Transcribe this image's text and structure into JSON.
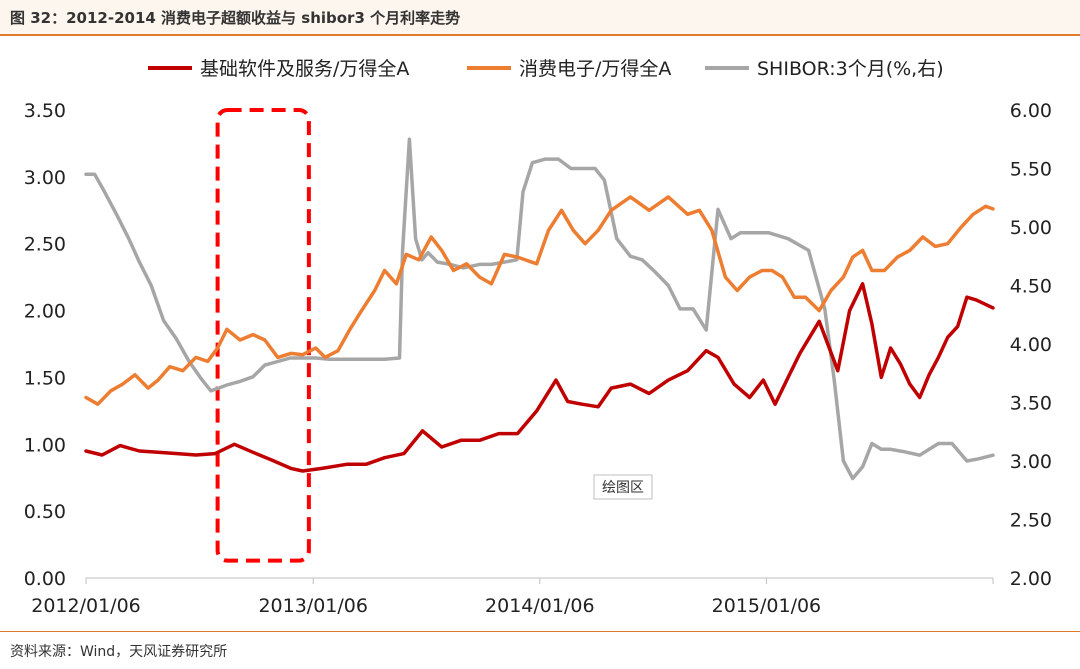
{
  "header": {
    "title": "图 32：2012-2014 消费电子超额收益与 shibor3 个月利率走势"
  },
  "footer": {
    "source": "资料来源：Wind，天风证券研究所"
  },
  "plot_area_label": "绘图区",
  "colors": {
    "series1": "#c00000",
    "series2": "#ed7d31",
    "series3": "#a6a6a6",
    "highlight": "#ff0000",
    "accent": "#e07b2c"
  },
  "chart_data": {
    "type": "line",
    "x_tick_labels": [
      "2012/01/06",
      "2013/01/06",
      "2014/01/06",
      "2015/01/06"
    ],
    "x_range": [
      "2012-01-06",
      "2016-01-06"
    ],
    "left_axis": {
      "ylim": [
        0,
        3.5
      ],
      "ticks": [
        "0.00",
        "0.50",
        "1.00",
        "1.50",
        "2.00",
        "2.50",
        "3.00",
        "3.50"
      ]
    },
    "right_axis": {
      "ylim": [
        2,
        6
      ],
      "ticks": [
        "2.00",
        "2.50",
        "3.00",
        "3.50",
        "4.00",
        "4.50",
        "5.00",
        "5.50",
        "6.00"
      ]
    },
    "legend_position": "top",
    "annotations": [
      {
        "type": "dashed-rectangle",
        "x_range": [
          "2012-08-05",
          "2012-12-30"
        ],
        "y_range": [
          0.13,
          3.5
        ],
        "color": "#ff0000"
      }
    ],
    "series": [
      {
        "name": "基础软件及服务/万得全A",
        "axis": "left",
        "x": [
          "2012-01-06",
          "2012-02-01",
          "2012-03-01",
          "2012-04-01",
          "2012-05-01",
          "2012-06-01",
          "2012-07-01",
          "2012-08-01",
          "2012-09-01",
          "2012-10-01",
          "2012-11-01",
          "2012-12-01",
          "2012-12-20",
          "2013-01-20",
          "2013-03-01",
          "2013-04-01",
          "2013-05-01",
          "2013-06-01",
          "2013-07-01",
          "2013-08-01",
          "2013-09-01",
          "2013-10-01",
          "2013-11-01",
          "2013-12-01",
          "2014-01-01",
          "2014-02-01",
          "2014-02-20",
          "2014-03-15",
          "2014-04-10",
          "2014-05-01",
          "2014-06-01",
          "2014-07-01",
          "2014-08-01",
          "2014-09-01",
          "2014-10-01",
          "2014-10-20",
          "2014-11-15",
          "2014-12-10",
          "2015-01-01",
          "2015-01-20",
          "2015-02-10",
          "2015-03-01",
          "2015-04-01",
          "2015-05-01",
          "2015-05-20",
          "2015-06-10",
          "2015-06-25",
          "2015-07-10",
          "2015-07-25",
          "2015-08-10",
          "2015-08-25",
          "2015-09-10",
          "2015-09-25",
          "2015-10-10",
          "2015-10-25",
          "2015-11-10",
          "2015-11-25",
          "2015-12-10",
          "2016-01-06"
        ],
        "values": [
          0.95,
          0.92,
          0.99,
          0.95,
          0.94,
          0.93,
          0.92,
          0.93,
          1.0,
          0.94,
          0.88,
          0.82,
          0.8,
          0.82,
          0.85,
          0.85,
          0.9,
          0.93,
          1.1,
          0.98,
          1.03,
          1.03,
          1.08,
          1.08,
          1.25,
          1.48,
          1.32,
          1.3,
          1.28,
          1.42,
          1.45,
          1.38,
          1.48,
          1.55,
          1.7,
          1.65,
          1.45,
          1.35,
          1.48,
          1.3,
          1.5,
          1.68,
          1.92,
          1.55,
          2.0,
          2.2,
          1.9,
          1.5,
          1.72,
          1.6,
          1.45,
          1.35,
          1.52,
          1.65,
          1.8,
          1.88,
          2.1,
          2.08,
          2.02
        ]
      },
      {
        "name": "消费电子/万得全A",
        "axis": "left",
        "x": [
          "2012-01-06",
          "2012-01-25",
          "2012-02-15",
          "2012-03-05",
          "2012-03-25",
          "2012-04-15",
          "2012-05-01",
          "2012-05-20",
          "2012-06-10",
          "2012-07-01",
          "2012-07-20",
          "2012-08-05",
          "2012-08-20",
          "2012-09-10",
          "2012-10-01",
          "2012-10-20",
          "2012-11-10",
          "2012-12-01",
          "2012-12-20",
          "2013-01-10",
          "2013-01-25",
          "2013-02-15",
          "2013-03-05",
          "2013-03-25",
          "2013-04-15",
          "2013-05-01",
          "2013-05-20",
          "2013-06-05",
          "2013-06-25",
          "2013-07-15",
          "2013-08-01",
          "2013-08-20",
          "2013-09-10",
          "2013-10-01",
          "2013-10-20",
          "2013-11-10",
          "2013-12-01",
          "2014-01-01",
          "2014-01-20",
          "2014-02-10",
          "2014-03-01",
          "2014-03-20",
          "2014-04-10",
          "2014-05-01",
          "2014-06-01",
          "2014-07-01",
          "2014-08-01",
          "2014-09-01",
          "2014-09-20",
          "2014-10-10",
          "2014-11-01",
          "2014-11-20",
          "2014-12-10",
          "2014-12-30",
          "2015-01-15",
          "2015-02-01",
          "2015-02-20",
          "2015-03-10",
          "2015-04-01",
          "2015-04-20",
          "2015-05-10",
          "2015-05-25",
          "2015-06-10",
          "2015-06-25",
          "2015-07-15",
          "2015-08-05",
          "2015-08-25",
          "2015-09-15",
          "2015-10-05",
          "2015-10-25",
          "2015-11-15",
          "2015-12-05",
          "2015-12-25",
          "2016-01-06"
        ],
        "values": [
          1.35,
          1.3,
          1.4,
          1.45,
          1.52,
          1.42,
          1.48,
          1.58,
          1.55,
          1.65,
          1.62,
          1.72,
          1.86,
          1.78,
          1.82,
          1.78,
          1.65,
          1.68,
          1.67,
          1.72,
          1.65,
          1.7,
          1.85,
          2.0,
          2.15,
          2.3,
          2.2,
          2.42,
          2.38,
          2.55,
          2.45,
          2.3,
          2.35,
          2.25,
          2.2,
          2.42,
          2.4,
          2.35,
          2.6,
          2.75,
          2.6,
          2.5,
          2.6,
          2.75,
          2.85,
          2.75,
          2.85,
          2.72,
          2.75,
          2.6,
          2.25,
          2.15,
          2.25,
          2.3,
          2.3,
          2.25,
          2.1,
          2.1,
          2.0,
          2.15,
          2.25,
          2.4,
          2.45,
          2.3,
          2.3,
          2.4,
          2.45,
          2.55,
          2.48,
          2.5,
          2.62,
          2.72,
          2.78,
          2.76
        ]
      },
      {
        "name": "SHIBOR:3个月(%,右)",
        "axis": "right",
        "x": [
          "2012-01-06",
          "2012-01-20",
          "2012-02-05",
          "2012-02-25",
          "2012-03-15",
          "2012-04-01",
          "2012-04-20",
          "2012-05-10",
          "2012-05-30",
          "2012-06-20",
          "2012-07-10",
          "2012-07-25",
          "2012-08-05",
          "2012-08-20",
          "2012-09-10",
          "2012-10-01",
          "2012-10-20",
          "2012-11-10",
          "2012-11-30",
          "2012-12-20",
          "2013-01-10",
          "2013-02-01",
          "2013-03-01",
          "2013-04-01",
          "2013-05-01",
          "2013-05-25",
          "2013-05-30",
          "2013-06-10",
          "2013-06-20",
          "2013-06-30",
          "2013-07-10",
          "2013-07-25",
          "2013-08-15",
          "2013-09-05",
          "2013-10-01",
          "2013-10-20",
          "2013-11-10",
          "2013-11-30",
          "2013-12-10",
          "2013-12-25",
          "2014-01-15",
          "2014-02-05",
          "2014-02-25",
          "2014-03-15",
          "2014-04-05",
          "2014-04-20",
          "2014-05-10",
          "2014-06-01",
          "2014-06-20",
          "2014-07-10",
          "2014-08-01",
          "2014-08-20",
          "2014-09-10",
          "2014-10-01",
          "2014-10-20",
          "2014-11-10",
          "2014-11-25",
          "2014-12-10",
          "2014-12-20",
          "2015-01-10",
          "2015-02-10",
          "2015-03-15",
          "2015-04-10",
          "2015-04-25",
          "2015-05-10",
          "2015-05-25",
          "2015-06-10",
          "2015-06-25",
          "2015-07-10",
          "2015-07-25",
          "2015-08-15",
          "2015-09-10",
          "2015-10-10",
          "2015-11-01",
          "2015-11-25",
          "2015-12-15",
          "2016-01-06"
        ],
        "values": [
          5.45,
          5.45,
          5.3,
          5.1,
          4.9,
          4.7,
          4.5,
          4.2,
          4.05,
          3.85,
          3.7,
          3.6,
          3.62,
          3.65,
          3.68,
          3.72,
          3.82,
          3.85,
          3.88,
          3.88,
          3.88,
          3.87,
          3.87,
          3.87,
          3.87,
          3.88,
          4.8,
          5.75,
          4.9,
          4.72,
          4.78,
          4.7,
          4.68,
          4.65,
          4.68,
          4.68,
          4.7,
          4.72,
          5.3,
          5.55,
          5.58,
          5.58,
          5.5,
          5.5,
          5.5,
          5.4,
          4.9,
          4.75,
          4.72,
          4.62,
          4.5,
          4.3,
          4.3,
          4.12,
          5.15,
          4.9,
          4.95,
          4.95,
          4.95,
          4.95,
          4.9,
          4.8,
          4.3,
          3.7,
          3.0,
          2.85,
          2.95,
          3.15,
          3.1,
          3.1,
          3.08,
          3.05,
          3.15,
          3.15,
          3.0,
          3.02,
          3.05
        ]
      }
    ]
  }
}
